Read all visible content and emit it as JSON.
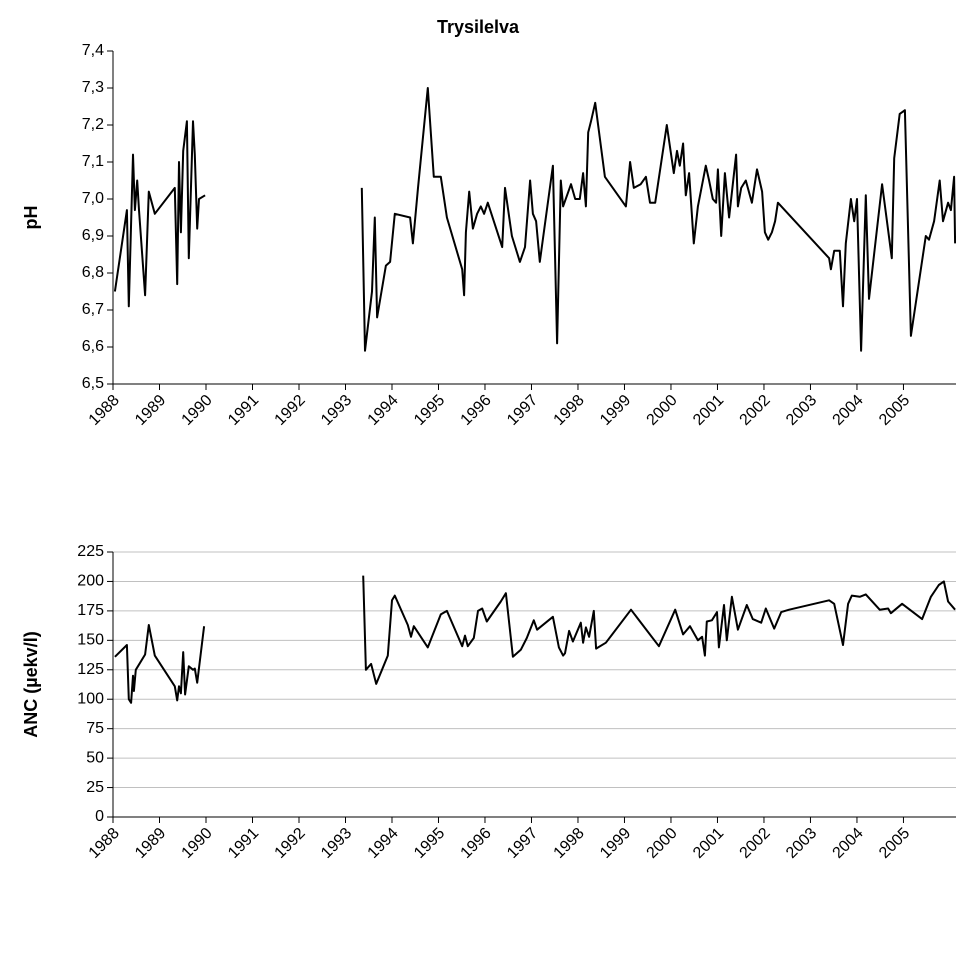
{
  "chart_data": [
    {
      "type": "line",
      "title": "Trysilelva",
      "y_label": "pH",
      "color": "#000000",
      "grid": false,
      "xlim": [
        1988,
        2006.13
      ],
      "xticks": [
        1988,
        1989,
        1990,
        1991,
        1992,
        1993,
        1994,
        1995,
        1996,
        1997,
        1998,
        1999,
        2000,
        2001,
        2002,
        2003,
        2004,
        2005
      ],
      "ylim": [
        6.5,
        7.4
      ],
      "yticks": [
        {
          "value": 6.5,
          "label": "6,5"
        },
        {
          "value": 6.6,
          "label": "6,6"
        },
        {
          "value": 6.7,
          "label": "6,7"
        },
        {
          "value": 6.8,
          "label": "6,8"
        },
        {
          "value": 6.9,
          "label": "6,9"
        },
        {
          "value": 7.0,
          "label": "7,0"
        },
        {
          "value": 7.1,
          "label": "7,1"
        },
        {
          "value": 7.2,
          "label": "7,2"
        },
        {
          "value": 7.3,
          "label": "7,3"
        },
        {
          "value": 7.4,
          "label": "7,4"
        }
      ],
      "x": [
        1988.04,
        1988.3,
        1988.34,
        1988.43,
        1988.47,
        1988.52,
        1988.56,
        1988.69,
        1988.77,
        1988.9,
        1989.33,
        1989.38,
        1989.42,
        1989.46,
        1989.51,
        1989.59,
        1989.63,
        1989.72,
        1989.76,
        1989.81,
        1989.85,
        1989.98,
        null,
        1993.35,
        1993.42,
        1993.57,
        1993.63,
        1993.68,
        1993.87,
        1993.96,
        1994.06,
        1994.39,
        1994.45,
        1994.56,
        1994.77,
        1994.9,
        1995.05,
        1995.18,
        1995.51,
        1995.55,
        1995.59,
        1995.66,
        1995.74,
        1995.83,
        1995.91,
        1995.98,
        1996.06,
        1996.37,
        1996.43,
        1996.58,
        1996.75,
        1996.86,
        1996.97,
        1997.03,
        1997.1,
        1997.18,
        1997.46,
        1997.55,
        1997.63,
        1997.68,
        1997.85,
        1997.94,
        1998.04,
        1998.11,
        1998.17,
        1998.22,
        1998.28,
        1998.37,
        1998.58,
        1999.03,
        1999.12,
        1999.2,
        1999.35,
        1999.46,
        1999.55,
        1999.66,
        1999.91,
        2000.06,
        2000.13,
        2000.19,
        2000.26,
        2000.32,
        2000.39,
        2000.49,
        2000.58,
        2000.75,
        2000.82,
        2000.9,
        2000.97,
        2001.01,
        2001.08,
        2001.16,
        2001.25,
        2001.4,
        2001.44,
        2001.51,
        2001.61,
        2001.74,
        2001.85,
        2001.96,
        2002.02,
        2002.09,
        2002.17,
        2002.24,
        2002.3,
        2003.4,
        2003.44,
        2003.51,
        2003.63,
        2003.7,
        2003.76,
        2003.87,
        2003.94,
        2004.0,
        2004.09,
        2004.19,
        2004.26,
        2004.54,
        2004.75,
        2004.8,
        2004.92,
        2005.03,
        2005.16,
        2005.48,
        2005.55,
        2005.66,
        2005.78,
        2005.85,
        2005.96,
        2006.02,
        2006.09,
        2006.11
      ],
      "values": [
        6.75,
        6.97,
        6.71,
        7.12,
        6.97,
        7.05,
        6.97,
        6.74,
        7.02,
        6.96,
        7.03,
        6.77,
        7.1,
        6.91,
        7.13,
        7.21,
        6.84,
        7.21,
        7.12,
        6.92,
        7.0,
        7.01,
        null,
        7.03,
        6.59,
        6.75,
        6.95,
        6.68,
        6.82,
        6.83,
        6.96,
        6.95,
        6.88,
        7.03,
        7.3,
        7.06,
        7.06,
        6.95,
        6.81,
        6.74,
        6.91,
        7.02,
        6.92,
        6.96,
        6.98,
        6.96,
        6.99,
        6.87,
        7.03,
        6.9,
        6.83,
        6.87,
        7.05,
        6.96,
        6.94,
        6.83,
        7.09,
        6.61,
        7.05,
        6.98,
        7.04,
        7.0,
        7.0,
        7.07,
        6.98,
        7.18,
        7.21,
        7.26,
        7.06,
        6.98,
        7.1,
        7.03,
        7.04,
        7.06,
        6.99,
        6.99,
        7.2,
        7.07,
        7.13,
        7.09,
        7.15,
        7.01,
        7.07,
        6.88,
        6.98,
        7.09,
        7.05,
        7.0,
        6.99,
        7.08,
        6.9,
        7.07,
        6.95,
        7.12,
        6.98,
        7.03,
        7.05,
        6.99,
        7.08,
        7.02,
        6.91,
        6.89,
        6.91,
        6.94,
        6.99,
        6.84,
        6.81,
        6.86,
        6.86,
        6.71,
        6.88,
        7.0,
        6.94,
        7.0,
        6.59,
        7.01,
        6.73,
        7.04,
        6.84,
        7.11,
        7.23,
        7.24,
        6.63,
        6.9,
        6.89,
        6.94,
        7.05,
        6.94,
        6.99,
        6.97,
        7.06,
        6.88
      ]
    },
    {
      "type": "line",
      "y_label": "ANC (µekv/l)",
      "color": "#000000",
      "grid": true,
      "xlim": [
        1988,
        2006.13
      ],
      "xticks": [
        1988,
        1989,
        1990,
        1991,
        1992,
        1993,
        1994,
        1995,
        1996,
        1997,
        1998,
        1999,
        2000,
        2001,
        2002,
        2003,
        2004,
        2005
      ],
      "ylim": [
        0,
        225
      ],
      "yticks": [
        0,
        25,
        50,
        75,
        100,
        125,
        150,
        175,
        200,
        225
      ],
      "x": [
        1988.04,
        1988.3,
        1988.34,
        1988.39,
        1988.43,
        1988.45,
        1988.49,
        1988.69,
        1988.77,
        1988.9,
        1989.33,
        1989.38,
        1989.42,
        1989.46,
        1989.51,
        1989.55,
        1989.63,
        1989.72,
        1989.76,
        1989.81,
        1989.96,
        null,
        1993.38,
        1993.44,
        1993.55,
        1993.66,
        1993.91,
        1994.0,
        1994.06,
        1994.34,
        1994.41,
        1994.47,
        1994.77,
        1994.9,
        1995.05,
        1995.18,
        1995.51,
        1995.57,
        1995.63,
        1995.76,
        1995.85,
        1995.94,
        1996.04,
        1996.34,
        1996.45,
        1996.6,
        1996.77,
        1996.9,
        1997.05,
        1997.12,
        1997.46,
        1997.59,
        1997.68,
        1997.72,
        1997.81,
        1997.89,
        1998.06,
        1998.11,
        1998.17,
        1998.24,
        1998.34,
        1998.39,
        1998.6,
        1999.14,
        1999.74,
        2000.09,
        2000.26,
        2000.41,
        2000.58,
        2000.67,
        2000.73,
        2000.77,
        2000.88,
        2000.99,
        2001.03,
        2001.14,
        2001.2,
        2001.31,
        2001.44,
        2001.63,
        2001.76,
        2001.94,
        2002.04,
        2002.22,
        2002.37,
        2002.54,
        2003.4,
        2003.51,
        2003.7,
        2003.81,
        2003.89,
        2004.06,
        2004.19,
        2004.49,
        2004.67,
        2004.73,
        2004.97,
        2005.4,
        2005.59,
        2005.76,
        2005.87,
        2005.96,
        2006.11
      ],
      "values": [
        136,
        146,
        100,
        97,
        120,
        107,
        125,
        138,
        163,
        137,
        111,
        99,
        111,
        105,
        140,
        104,
        128,
        125,
        126,
        114,
        162,
        null,
        205,
        125,
        130,
        113,
        137,
        184,
        188,
        163,
        153,
        162,
        144,
        157,
        172,
        175,
        145,
        154,
        145,
        152,
        175,
        177,
        166,
        183,
        190,
        136,
        142,
        152,
        167,
        159,
        170,
        144,
        137,
        139,
        158,
        149,
        165,
        148,
        161,
        153,
        175,
        143,
        148,
        176,
        145,
        176,
        155,
        162,
        150,
        153,
        137,
        166,
        167,
        174,
        144,
        180,
        150,
        187,
        159,
        180,
        168,
        165,
        177,
        160,
        174,
        176,
        184,
        181,
        146,
        181,
        188,
        187,
        189,
        176,
        177,
        173,
        181,
        168,
        187,
        197,
        200,
        183,
        176
      ]
    }
  ]
}
